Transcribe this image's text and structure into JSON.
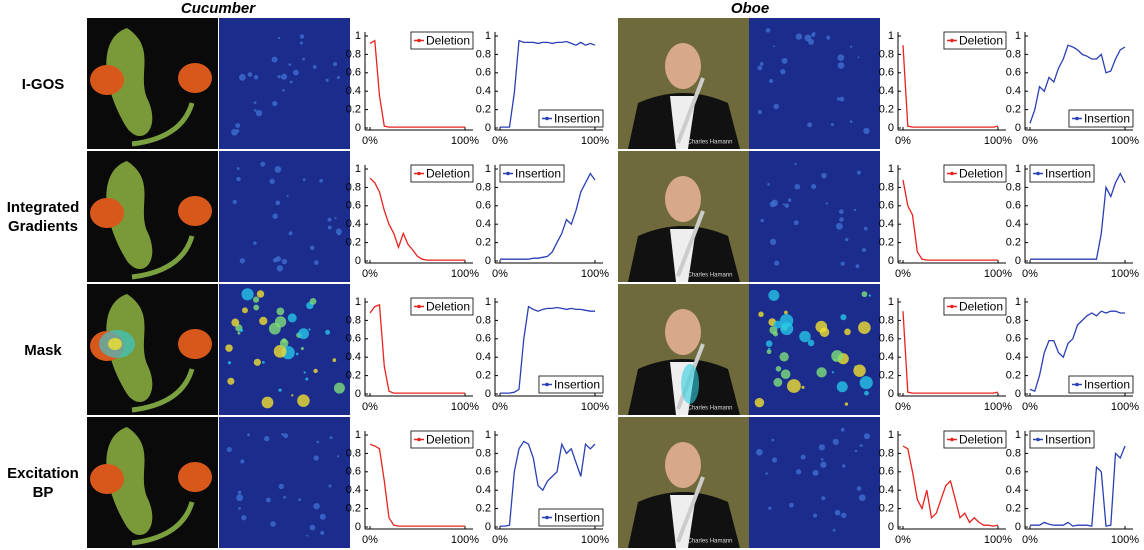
{
  "columns": [
    "Cucumber",
    "Oboe"
  ],
  "rows": [
    "I-GOS",
    "Integrated Gradients",
    "Mask",
    "Excitation BP"
  ],
  "watermark": "Charles Hamann",
  "chart_data": [
    {
      "type": "line",
      "series": [
        {
          "name": "Deletion",
          "color": "#e8231f",
          "values": [
            0.92,
            0.95,
            0.35,
            0.02,
            0.01,
            0.01,
            0.01,
            0.01,
            0.01,
            0.01,
            0.01,
            0.01,
            0.01,
            0.01,
            0.01,
            0.01,
            0.01,
            0.01,
            0.01,
            0.01,
            0.01
          ]
        }
      ],
      "x": [
        0,
        5,
        10,
        15,
        20,
        25,
        30,
        35,
        40,
        45,
        50,
        55,
        60,
        65,
        70,
        75,
        80,
        85,
        90,
        95,
        100
      ],
      "xlim": [
        0,
        100
      ],
      "ylim": [
        0,
        1
      ],
      "xticks": [
        {
          "value": 0,
          "label": "0%"
        },
        {
          "value": 100,
          "label": "100%"
        }
      ],
      "yticks": [
        0,
        0.2,
        0.4,
        0.6,
        0.8,
        1
      ],
      "legend": "upper right"
    },
    {
      "type": "line",
      "series": [
        {
          "name": "Insertion",
          "color": "#2a3fb5",
          "values": [
            0.01,
            0.01,
            0.01,
            0.38,
            0.95,
            0.93,
            0.93,
            0.93,
            0.92,
            0.93,
            0.93,
            0.92,
            0.93,
            0.93,
            0.94,
            0.92,
            0.9,
            0.93,
            0.9,
            0.92,
            0.9
          ]
        }
      ],
      "x": [
        0,
        5,
        10,
        15,
        20,
        25,
        30,
        35,
        40,
        45,
        50,
        55,
        60,
        65,
        70,
        75,
        80,
        85,
        90,
        95,
        100
      ],
      "xlim": [
        0,
        100
      ],
      "ylim": [
        0,
        1
      ],
      "xticks": [
        {
          "value": 0,
          "label": "0%"
        },
        {
          "value": 100,
          "label": "100%"
        }
      ],
      "yticks": [
        0,
        0.2,
        0.4,
        0.6,
        0.8,
        1
      ],
      "legend": "lower right"
    },
    {
      "type": "line",
      "series": [
        {
          "name": "Deletion",
          "color": "#e8231f",
          "values": [
            0.9,
            0.02,
            0.01,
            0.01,
            0.01,
            0.01,
            0.01,
            0.01,
            0.01,
            0.01,
            0.01,
            0.01,
            0.01,
            0.01,
            0.01,
            0.01,
            0.01,
            0.01,
            0.01,
            0.01,
            0.02
          ]
        }
      ],
      "x": [
        0,
        5,
        10,
        15,
        20,
        25,
        30,
        35,
        40,
        45,
        50,
        55,
        60,
        65,
        70,
        75,
        80,
        85,
        90,
        95,
        100
      ],
      "xlim": [
        0,
        100
      ],
      "ylim": [
        0,
        1
      ],
      "xticks": [
        {
          "value": 0,
          "label": "0%"
        },
        {
          "value": 100,
          "label": "100%"
        }
      ],
      "yticks": [
        0,
        0.2,
        0.4,
        0.6,
        0.8,
        1
      ],
      "legend": "upper right"
    },
    {
      "type": "line",
      "series": [
        {
          "name": "Insertion",
          "color": "#2a3fb5",
          "values": [
            0.05,
            0.2,
            0.45,
            0.4,
            0.55,
            0.5,
            0.65,
            0.75,
            0.9,
            0.88,
            0.85,
            0.8,
            0.78,
            0.75,
            0.75,
            0.8,
            0.6,
            0.62,
            0.75,
            0.85,
            0.88
          ]
        }
      ],
      "x": [
        0,
        5,
        10,
        15,
        20,
        25,
        30,
        35,
        40,
        45,
        50,
        55,
        60,
        65,
        70,
        75,
        80,
        85,
        90,
        95,
        100
      ],
      "xlim": [
        0,
        100
      ],
      "ylim": [
        0,
        1
      ],
      "xticks": [
        {
          "value": 0,
          "label": "0%"
        },
        {
          "value": 100,
          "label": "100%"
        }
      ],
      "yticks": [
        0,
        0.2,
        0.4,
        0.6,
        0.8,
        1
      ],
      "legend": "lower right"
    },
    {
      "type": "line",
      "series": [
        {
          "name": "Deletion",
          "color": "#e8231f",
          "values": [
            0.9,
            0.85,
            0.75,
            0.55,
            0.4,
            0.3,
            0.15,
            0.3,
            0.18,
            0.12,
            0.05,
            0.02,
            0.01,
            0.01,
            0.01,
            0.01,
            0.01,
            0.01,
            0.01,
            0.01,
            0.01
          ]
        }
      ],
      "x": [
        0,
        5,
        10,
        15,
        20,
        25,
        30,
        35,
        40,
        45,
        50,
        55,
        60,
        65,
        70,
        75,
        80,
        85,
        90,
        95,
        100
      ],
      "xlim": [
        0,
        100
      ],
      "ylim": [
        0,
        1
      ],
      "xticks": [
        {
          "value": 0,
          "label": "0%"
        },
        {
          "value": 100,
          "label": "100%"
        }
      ],
      "yticks": [
        0,
        0.2,
        0.4,
        0.6,
        0.8,
        1
      ],
      "legend": "upper right"
    },
    {
      "type": "line",
      "series": [
        {
          "name": "Insertion",
          "color": "#2a3fb5",
          "values": [
            0.02,
            0.02,
            0.02,
            0.02,
            0.02,
            0.02,
            0.02,
            0.03,
            0.03,
            0.04,
            0.05,
            0.1,
            0.2,
            0.3,
            0.45,
            0.4,
            0.55,
            0.75,
            0.85,
            0.95,
            0.88
          ]
        }
      ],
      "x": [
        0,
        5,
        10,
        15,
        20,
        25,
        30,
        35,
        40,
        45,
        50,
        55,
        60,
        65,
        70,
        75,
        80,
        85,
        90,
        95,
        100
      ],
      "xlim": [
        0,
        100
      ],
      "ylim": [
        0,
        1
      ],
      "xticks": [
        {
          "value": 0,
          "label": "0%"
        },
        {
          "value": 100,
          "label": "100%"
        }
      ],
      "yticks": [
        0,
        0.2,
        0.4,
        0.6,
        0.8,
        1
      ],
      "legend": "upper left"
    },
    {
      "type": "line",
      "series": [
        {
          "name": "Deletion",
          "color": "#e8231f",
          "values": [
            0.88,
            0.6,
            0.5,
            0.1,
            0.02,
            0.01,
            0.01,
            0.01,
            0.01,
            0.01,
            0.01,
            0.01,
            0.01,
            0.01,
            0.01,
            0.01,
            0.01,
            0.01,
            0.01,
            0.01,
            0.01
          ]
        }
      ],
      "x": [
        0,
        5,
        10,
        15,
        20,
        25,
        30,
        35,
        40,
        45,
        50,
        55,
        60,
        65,
        70,
        75,
        80,
        85,
        90,
        95,
        100
      ],
      "xlim": [
        0,
        100
      ],
      "ylim": [
        0,
        1
      ],
      "xticks": [
        {
          "value": 0,
          "label": "0%"
        },
        {
          "value": 100,
          "label": "100%"
        }
      ],
      "yticks": [
        0,
        0.2,
        0.4,
        0.6,
        0.8,
        1
      ],
      "legend": "upper right"
    },
    {
      "type": "line",
      "series": [
        {
          "name": "Insertion",
          "color": "#2a3fb5",
          "values": [
            0.02,
            0.02,
            0.02,
            0.02,
            0.02,
            0.02,
            0.02,
            0.02,
            0.02,
            0.02,
            0.02,
            0.02,
            0.02,
            0.02,
            0.02,
            0.3,
            0.8,
            0.7,
            0.85,
            0.95,
            0.85
          ]
        }
      ],
      "x": [
        0,
        5,
        10,
        15,
        20,
        25,
        30,
        35,
        40,
        45,
        50,
        55,
        60,
        65,
        70,
        75,
        80,
        85,
        90,
        95,
        100
      ],
      "xlim": [
        0,
        100
      ],
      "ylim": [
        0,
        1
      ],
      "xticks": [
        {
          "value": 0,
          "label": "0%"
        },
        {
          "value": 100,
          "label": "100%"
        }
      ],
      "yticks": [
        0,
        0.2,
        0.4,
        0.6,
        0.8,
        1
      ],
      "legend": "upper left"
    },
    {
      "type": "line",
      "series": [
        {
          "name": "Deletion",
          "color": "#e8231f",
          "values": [
            0.88,
            0.95,
            0.97,
            0.3,
            0.03,
            0.01,
            0.01,
            0.01,
            0.01,
            0.01,
            0.01,
            0.01,
            0.01,
            0.01,
            0.01,
            0.01,
            0.01,
            0.01,
            0.01,
            0.01,
            0.01
          ]
        }
      ],
      "x": [
        0,
        5,
        10,
        15,
        20,
        25,
        30,
        35,
        40,
        45,
        50,
        55,
        60,
        65,
        70,
        75,
        80,
        85,
        90,
        95,
        100
      ],
      "xlim": [
        0,
        100
      ],
      "ylim": [
        0,
        1
      ],
      "xticks": [
        {
          "value": 0,
          "label": "0%"
        },
        {
          "value": 100,
          "label": "100%"
        }
      ],
      "yticks": [
        0,
        0.2,
        0.4,
        0.6,
        0.8,
        1
      ],
      "legend": "upper right"
    },
    {
      "type": "line",
      "series": [
        {
          "name": "Insertion",
          "color": "#2a3fb5",
          "values": [
            0.01,
            0.01,
            0.01,
            0.02,
            0.05,
            0.6,
            0.95,
            0.92,
            0.9,
            0.92,
            0.93,
            0.93,
            0.94,
            0.93,
            0.92,
            0.93,
            0.92,
            0.92,
            0.91,
            0.9,
            0.9
          ]
        }
      ],
      "x": [
        0,
        5,
        10,
        15,
        20,
        25,
        30,
        35,
        40,
        45,
        50,
        55,
        60,
        65,
        70,
        75,
        80,
        85,
        90,
        95,
        100
      ],
      "xlim": [
        0,
        100
      ],
      "ylim": [
        0,
        1
      ],
      "xticks": [
        {
          "value": 0,
          "label": "0%"
        },
        {
          "value": 100,
          "label": "100%"
        }
      ],
      "yticks": [
        0,
        0.2,
        0.4,
        0.6,
        0.8,
        1
      ],
      "legend": "lower right"
    },
    {
      "type": "line",
      "series": [
        {
          "name": "Deletion",
          "color": "#e8231f",
          "values": [
            0.9,
            0.02,
            0.01,
            0.01,
            0.01,
            0.01,
            0.01,
            0.01,
            0.01,
            0.01,
            0.01,
            0.01,
            0.01,
            0.01,
            0.01,
            0.01,
            0.01,
            0.01,
            0.01,
            0.01,
            0.02
          ]
        }
      ],
      "x": [
        0,
        5,
        10,
        15,
        20,
        25,
        30,
        35,
        40,
        45,
        50,
        55,
        60,
        65,
        70,
        75,
        80,
        85,
        90,
        95,
        100
      ],
      "xlim": [
        0,
        100
      ],
      "ylim": [
        0,
        1
      ],
      "xticks": [
        {
          "value": 0,
          "label": "0%"
        },
        {
          "value": 100,
          "label": "100%"
        }
      ],
      "yticks": [
        0,
        0.2,
        0.4,
        0.6,
        0.8,
        1
      ],
      "legend": "upper right"
    },
    {
      "type": "line",
      "series": [
        {
          "name": "Insertion",
          "color": "#2a3fb5",
          "values": [
            0.05,
            0.03,
            0.2,
            0.45,
            0.58,
            0.58,
            0.45,
            0.4,
            0.55,
            0.6,
            0.75,
            0.8,
            0.85,
            0.88,
            0.85,
            0.9,
            0.88,
            0.9,
            0.9,
            0.88,
            0.88
          ]
        }
      ],
      "x": [
        0,
        5,
        10,
        15,
        20,
        25,
        30,
        35,
        40,
        45,
        50,
        55,
        60,
        65,
        70,
        75,
        80,
        85,
        90,
        95,
        100
      ],
      "xlim": [
        0,
        100
      ],
      "ylim": [
        0,
        1
      ],
      "xticks": [
        {
          "value": 0,
          "label": "0%"
        },
        {
          "value": 100,
          "label": "100%"
        }
      ],
      "yticks": [
        0,
        0.2,
        0.4,
        0.6,
        0.8,
        1
      ],
      "legend": "lower right"
    },
    {
      "type": "line",
      "series": [
        {
          "name": "Deletion",
          "color": "#e8231f",
          "values": [
            0.9,
            0.88,
            0.85,
            0.5,
            0.1,
            0.02,
            0.01,
            0.01,
            0.01,
            0.01,
            0.01,
            0.01,
            0.01,
            0.01,
            0.01,
            0.01,
            0.01,
            0.01,
            0.01,
            0.01,
            0.01
          ]
        }
      ],
      "x": [
        0,
        5,
        10,
        15,
        20,
        25,
        30,
        35,
        40,
        45,
        50,
        55,
        60,
        65,
        70,
        75,
        80,
        85,
        90,
        95,
        100
      ],
      "xlim": [
        0,
        100
      ],
      "ylim": [
        0,
        1
      ],
      "xticks": [
        {
          "value": 0,
          "label": "0%"
        },
        {
          "value": 100,
          "label": "100%"
        }
      ],
      "yticks": [
        0,
        0.2,
        0.4,
        0.6,
        0.8,
        1
      ],
      "legend": "upper right"
    },
    {
      "type": "line",
      "series": [
        {
          "name": "Insertion",
          "color": "#2a3fb5",
          "values": [
            0.01,
            0.01,
            0.02,
            0.6,
            0.85,
            0.93,
            0.9,
            0.75,
            0.45,
            0.4,
            0.5,
            0.55,
            0.6,
            0.9,
            0.8,
            0.85,
            0.7,
            0.55,
            0.9,
            0.85,
            0.9
          ]
        }
      ],
      "x": [
        0,
        5,
        10,
        15,
        20,
        25,
        30,
        35,
        40,
        45,
        50,
        55,
        60,
        65,
        70,
        75,
        80,
        85,
        90,
        95,
        100
      ],
      "xlim": [
        0,
        100
      ],
      "ylim": [
        0,
        1
      ],
      "xticks": [
        {
          "value": 0,
          "label": "0%"
        },
        {
          "value": 100,
          "label": "100%"
        }
      ],
      "yticks": [
        0,
        0.2,
        0.4,
        0.6,
        0.8,
        1
      ],
      "legend": "lower right"
    },
    {
      "type": "line",
      "series": [
        {
          "name": "Deletion",
          "color": "#e8231f",
          "values": [
            0.88,
            0.85,
            0.6,
            0.3,
            0.2,
            0.4,
            0.1,
            0.15,
            0.3,
            0.45,
            0.5,
            0.3,
            0.1,
            0.15,
            0.05,
            0.1,
            0.05,
            0.02,
            0.02,
            0.01,
            0.02
          ]
        }
      ],
      "x": [
        0,
        5,
        10,
        15,
        20,
        25,
        30,
        35,
        40,
        45,
        50,
        55,
        60,
        65,
        70,
        75,
        80,
        85,
        90,
        95,
        100
      ],
      "xlim": [
        0,
        100
      ],
      "ylim": [
        0,
        1
      ],
      "xticks": [
        {
          "value": 0,
          "label": "0%"
        },
        {
          "value": 100,
          "label": "100%"
        }
      ],
      "yticks": [
        0,
        0.2,
        0.4,
        0.6,
        0.8,
        1
      ],
      "legend": "upper right"
    },
    {
      "type": "line",
      "series": [
        {
          "name": "Insertion",
          "color": "#2a3fb5",
          "values": [
            0.02,
            0.02,
            0.02,
            0.05,
            0.03,
            0.02,
            0.02,
            0.02,
            0.05,
            0.01,
            0.02,
            0.02,
            0.02,
            0.01,
            0.65,
            0.6,
            0.01,
            0.02,
            0.8,
            0.75,
            0.88
          ]
        }
      ],
      "x": [
        0,
        5,
        10,
        15,
        20,
        25,
        30,
        35,
        40,
        45,
        50,
        55,
        60,
        65,
        70,
        75,
        80,
        85,
        90,
        95,
        100
      ],
      "xlim": [
        0,
        100
      ],
      "ylim": [
        0,
        1
      ],
      "xticks": [
        {
          "value": 0,
          "label": "0%"
        },
        {
          "value": 100,
          "label": "100%"
        }
      ],
      "yticks": [
        0,
        0.2,
        0.4,
        0.6,
        0.8,
        1
      ],
      "legend": "upper left"
    }
  ]
}
